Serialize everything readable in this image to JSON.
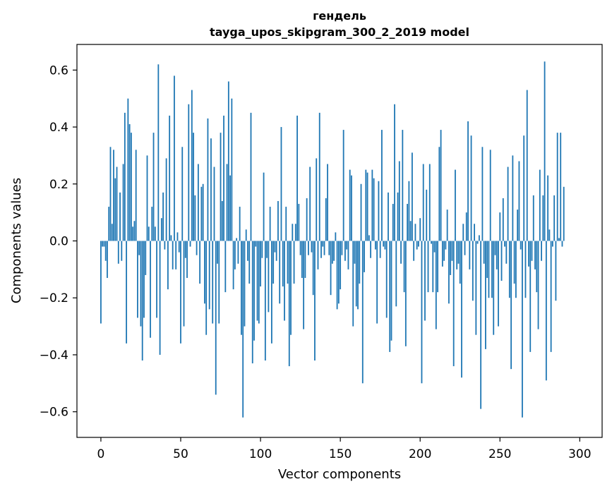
{
  "chart_data": {
    "type": "bar",
    "title": "гендель",
    "subtitle": "tayga_upos_skipgram_300_2_2019 model",
    "xlabel": "Vector components",
    "ylabel": "Components values",
    "xlim": [
      -15,
      314
    ],
    "ylim": [
      -0.69,
      0.69
    ],
    "xticks": [
      0,
      50,
      100,
      150,
      200,
      250,
      300
    ],
    "yticks": [
      -0.6,
      -0.4,
      -0.2,
      0.0,
      0.2,
      0.4,
      0.6
    ],
    "ytick_labels": [
      "−0.6",
      "−0.4",
      "−0.2",
      "0.0",
      "0.2",
      "0.4",
      "0.6"
    ],
    "grid": false,
    "bar_color": "#1f77b4",
    "values": [
      -0.29,
      -0.02,
      -0.02,
      -0.07,
      -0.13,
      0.12,
      0.33,
      0.06,
      0.32,
      0.22,
      0.26,
      -0.08,
      0.17,
      -0.07,
      0.27,
      0.45,
      -0.36,
      0.5,
      0.41,
      0.38,
      0.05,
      0.07,
      0.32,
      -0.27,
      -0.05,
      -0.3,
      -0.42,
      -0.27,
      -0.12,
      0.3,
      0.05,
      -0.34,
      0.12,
      0.38,
      0.05,
      -0.27,
      0.62,
      -0.4,
      0.08,
      0.17,
      -0.03,
      0.29,
      -0.17,
      0.44,
      0.02,
      -0.1,
      0.58,
      -0.1,
      0.03,
      -0.04,
      -0.36,
      0.33,
      -0.3,
      -0.06,
      -0.13,
      0.48,
      -0.02,
      0.53,
      0.38,
      0.16,
      -0.05,
      0.27,
      -0.15,
      0.19,
      0.2,
      -0.22,
      -0.33,
      0.43,
      -0.24,
      0.36,
      -0.29,
      0.26,
      -0.54,
      -0.08,
      -0.29,
      0.38,
      0.14,
      0.44,
      -0.18,
      0.27,
      0.56,
      0.23,
      0.5,
      -0.17,
      -0.1,
      0.01,
      -0.08,
      0.12,
      -0.33,
      -0.62,
      -0.3,
      0.04,
      -0.07,
      -0.15,
      0.45,
      -0.43,
      -0.35,
      -0.02,
      -0.28,
      -0.29,
      -0.16,
      -0.06,
      0.24,
      -0.42,
      -0.06,
      -0.25,
      0.12,
      -0.36,
      -0.15,
      -0.04,
      -0.07,
      0.14,
      -0.22,
      0.4,
      -0.16,
      -0.28,
      0.12,
      -0.15,
      -0.44,
      -0.33,
      0.06,
      -0.15,
      0.06,
      0.44,
      0.13,
      -0.05,
      -0.13,
      -0.31,
      -0.13,
      0.15,
      -0.05,
      0.26,
      -0.04,
      -0.19,
      -0.42,
      0.29,
      -0.1,
      0.45,
      -0.06,
      -0.02,
      -0.05,
      0.15,
      0.27,
      -0.05,
      -0.19,
      -0.08,
      -0.07,
      0.03,
      -0.24,
      -0.22,
      -0.17,
      -0.05,
      0.39,
      -0.07,
      -0.03,
      -0.1,
      0.25,
      0.23,
      -0.3,
      -0.08,
      -0.23,
      -0.24,
      -0.15,
      0.2,
      -0.5,
      -0.11,
      0.25,
      0.24,
      0.02,
      -0.06,
      0.25,
      0.22,
      -0.03,
      -0.29,
      0.21,
      -0.06,
      0.39,
      -0.02,
      -0.03,
      -0.27,
      0.17,
      -0.39,
      -0.35,
      0.13,
      0.48,
      -0.23,
      0.17,
      0.28,
      -0.08,
      0.39,
      -0.18,
      -0.37,
      0.13,
      0.21,
      0.07,
      0.31,
      -0.07,
      0.06,
      -0.03,
      -0.02,
      0.08,
      -0.5,
      0.27,
      -0.28,
      0.18,
      -0.18,
      0.27,
      -0.01,
      -0.18,
      -0.04,
      -0.31,
      -0.18,
      0.33,
      0.39,
      -0.09,
      -0.07,
      -0.03,
      0.11,
      -0.22,
      -0.12,
      -0.07,
      -0.44,
      0.25,
      -0.1,
      -0.08,
      -0.15,
      -0.48,
      0.06,
      -0.05,
      0.1,
      0.42,
      -0.1,
      0.37,
      -0.21,
      0.06,
      -0.33,
      -0.01,
      0.02,
      -0.59,
      0.33,
      -0.08,
      -0.38,
      -0.13,
      -0.2,
      0.32,
      -0.2,
      -0.33,
      -0.05,
      -0.1,
      -0.3,
      0.1,
      -0.14,
      0.15,
      -0.02,
      -0.08,
      0.26,
      -0.2,
      -0.45,
      0.3,
      -0.15,
      -0.2,
      0.11,
      0.28,
      -0.03,
      -0.62,
      0.37,
      -0.2,
      0.53,
      -0.09,
      -0.39,
      -0.07,
      0.16,
      -0.1,
      -0.18,
      -0.31,
      0.25,
      -0.07,
      0.16,
      0.63,
      -0.49,
      0.23,
      0.04,
      -0.39,
      -0.02,
      0.16,
      -0.21,
      0.38,
      0.01,
      0.38,
      -0.02,
      0.19
    ]
  }
}
